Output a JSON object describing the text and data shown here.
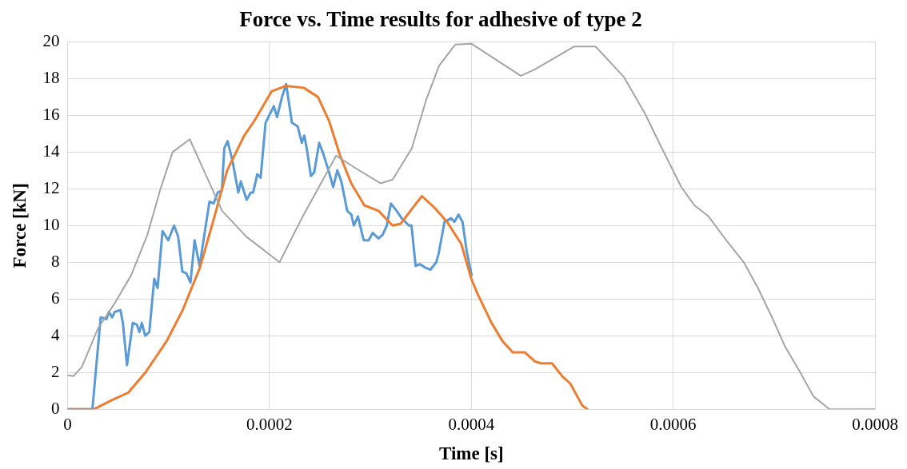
{
  "chart_data": {
    "type": "line",
    "title": "Force vs. Time results for adhesive of type 2",
    "xlabel": "Time [s]",
    "ylabel": "Force [kN]",
    "xlim": [
      0,
      0.0008
    ],
    "ylim": [
      0,
      20
    ],
    "xticks": [
      0,
      0.0002,
      0.0004,
      0.0006,
      0.0008
    ],
    "yticks": [
      0,
      2,
      4,
      6,
      8,
      10,
      12,
      14,
      16,
      18,
      20
    ],
    "grid": true,
    "marker": "none",
    "line_style": "solid",
    "series": [
      {
        "color": "#a5a5a5",
        "x": [
          0,
          5.7e-06,
          1.4e-05,
          3e-05,
          4.7e-05,
          6.3e-05,
          7.9e-05,
          9.2e-05,
          0.000104,
          0.000121,
          0.000153,
          0.000177,
          0.00021,
          0.000232,
          0.000266,
          0.000286,
          0.00031,
          0.000322,
          0.000341,
          0.000355,
          0.000368,
          0.000384,
          0.0004,
          0.000449,
          0.000463,
          0.000502,
          0.000523,
          0.000529,
          0.000551,
          0.000572,
          0.000588,
          0.000608,
          0.000621,
          0.000635,
          0.000654,
          0.00067,
          0.000684,
          0.000698,
          0.000711,
          0.000725,
          0.000739,
          0.000755,
          0.0008
        ],
        "values": [
          1.85,
          1.8,
          2.3,
          4.4,
          5.8,
          7.3,
          9.5,
          12,
          14,
          14.7,
          10.8,
          9.4,
          8.0,
          10.4,
          13.8,
          13.1,
          12.3,
          12.5,
          14.2,
          16.8,
          18.7,
          19.85,
          19.9,
          18.15,
          18.5,
          19.75,
          19.75,
          19.4,
          18.1,
          16.1,
          14.3,
          12.1,
          11.1,
          10.5,
          9.1,
          8.0,
          6.6,
          5.0,
          3.4,
          2.1,
          0.7,
          0,
          0
        ]
      },
      {
        "color": "#ed7d31",
        "x": [
          0,
          2.6e-05,
          4.4e-05,
          6e-05,
          7.7e-05,
          9.8e-05,
          0.000114,
          0.000131,
          0.000145,
          0.000158,
          0.000175,
          0.000185,
          0.000202,
          0.000216,
          0.000234,
          0.000248,
          0.000259,
          0.00027,
          0.000281,
          0.000294,
          0.000308,
          0.000322,
          0.00033,
          0.000341,
          0.000351,
          0.000363,
          0.000376,
          0.00039,
          0.0004,
          0.000406,
          0.00042,
          0.000431,
          0.000441,
          0.000453,
          0.000463,
          0.000469,
          0.00048,
          0.00049,
          0.000498,
          0.00051,
          0.000515
        ],
        "values": [
          0,
          0,
          0.5,
          0.9,
          2.0,
          3.7,
          5.4,
          7.7,
          10.4,
          13.0,
          14.9,
          15.7,
          17.3,
          17.6,
          17.5,
          17.0,
          15.7,
          13.8,
          12.3,
          11.1,
          10.8,
          10.0,
          10.1,
          10.9,
          11.6,
          11.0,
          10.2,
          9.0,
          7.1,
          6.3,
          4.7,
          3.7,
          3.1,
          3.1,
          2.6,
          2.5,
          2.5,
          1.8,
          1.4,
          0.2,
          0
        ]
      },
      {
        "color": "#5b9bd5",
        "x": [
          0,
          2.45e-05,
          3.27e-05,
          3.84e-05,
          4.09e-05,
          4.41e-05,
          4.66e-05,
          5.23e-05,
          5.47e-05,
          5.88e-05,
          6.45e-05,
          6.86e-05,
          7.11e-05,
          7.35e-05,
          7.68e-05,
          8.09e-05,
          8.58e-05,
          8.91e-05,
          9.4e-05,
          9.97e-05,
          0.0001054,
          0.0001095,
          0.0001136,
          0.0001176,
          0.0001217,
          0.0001258,
          0.0001307,
          0.0001405,
          0.0001446,
          0.0001487,
          0.0001528,
          0.0001552,
          0.0001585,
          0.0001634,
          0.0001691,
          0.0001716,
          0.0001773,
          0.0001814,
          0.0001838,
          0.0001879,
          0.0001912,
          0.0001961,
          0.0002043,
          0.0002075,
          0.0002124,
          0.0002165,
          0.0002222,
          0.0002279,
          0.000232,
          0.0002345,
          0.0002369,
          0.000241,
          0.0002443,
          0.0002492,
          0.0002533,
          0.000259,
          0.0002631,
          0.0002672,
          0.0002712,
          0.000277,
          0.0002811,
          0.0002835,
          0.0002876,
          0.0002933,
          0.0002982,
          0.0003023,
          0.000308,
          0.0003121,
          0.0003162,
          0.0003203,
          0.000326,
          0.0003309,
          0.0003382,
          0.0003407,
          0.0003448,
          0.0003489,
          0.0003546,
          0.0003595,
          0.0003652,
          0.0003677,
          0.0003734,
          0.0003799,
          0.0003832,
          0.0003873,
          0.0003913,
          0.0003954,
          0.0004003
        ],
        "values": [
          0,
          0,
          5.0,
          4.9,
          5.3,
          5.0,
          5.3,
          5.4,
          4.7,
          2.4,
          4.7,
          4.6,
          4.2,
          4.7,
          4.0,
          4.2,
          7.1,
          6.6,
          9.7,
          9.2,
          10.0,
          9.4,
          7.5,
          7.4,
          6.9,
          9.2,
          7.8,
          11.3,
          11.2,
          11.8,
          11.9,
          14.2,
          14.6,
          13.5,
          11.8,
          12.4,
          11.4,
          11.8,
          11.8,
          12.8,
          12.6,
          15.6,
          16.5,
          15.9,
          17.0,
          17.7,
          15.6,
          15.4,
          14.5,
          14.9,
          14.2,
          12.7,
          12.9,
          14.5,
          13.9,
          12.9,
          12.1,
          13.0,
          12.4,
          10.8,
          10.6,
          10.0,
          10.5,
          9.2,
          9.2,
          9.6,
          9.3,
          9.5,
          10.0,
          11.2,
          10.8,
          10.4,
          10.0,
          10.0,
          7.8,
          7.9,
          7.7,
          7.6,
          8.0,
          8.5,
          10.2,
          10.4,
          10.2,
          10.6,
          10.2,
          8.6,
          7.3
        ]
      }
    ]
  }
}
